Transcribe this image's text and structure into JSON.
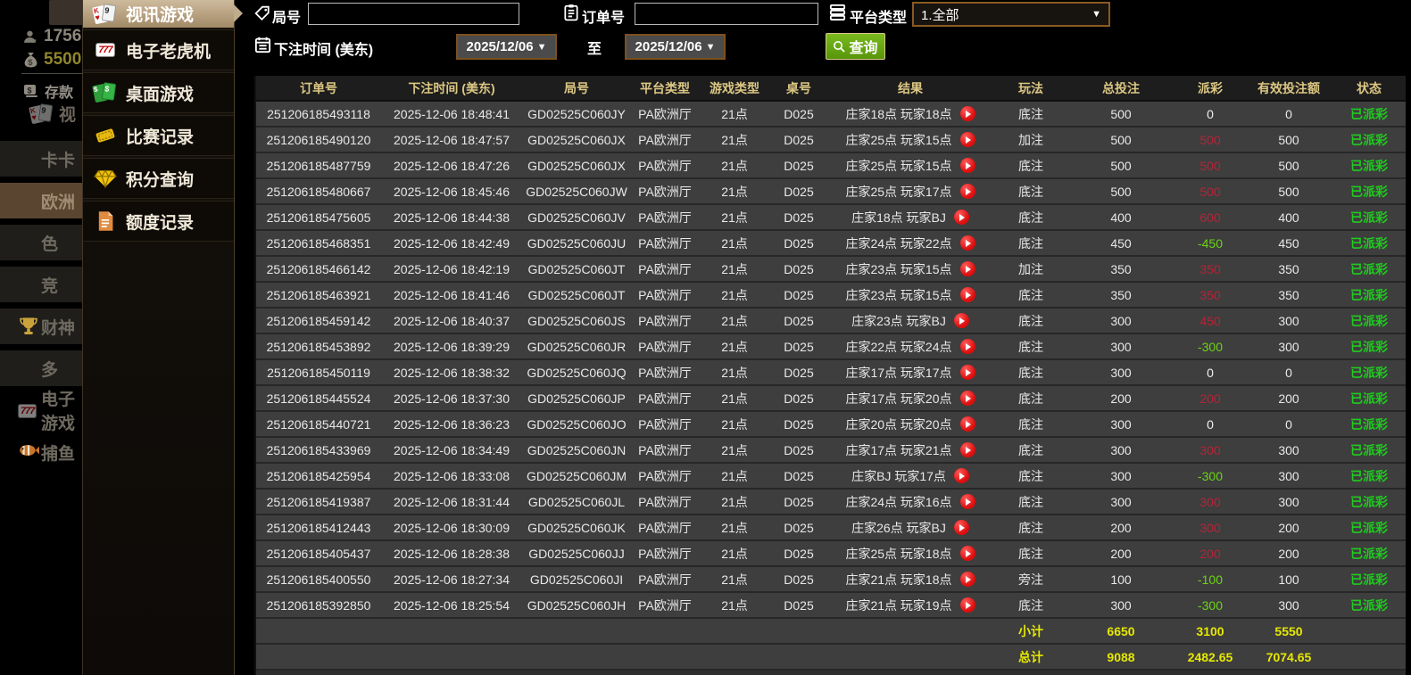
{
  "colors": {
    "accent_tan": "#b49d7c",
    "header_gold": "#dcc783",
    "payout_win_red": "#b52438",
    "payout_lose_green": "#6cd414",
    "status_green": "#1ecb1e",
    "totals_yellow": "#e6e800",
    "search_green": "#579609",
    "date_border_orange": "#7d4f1d"
  },
  "ghost_page": {
    "user_count": "1756",
    "balance": "5500",
    "deposit_label": "存款",
    "video_label": "视",
    "nav_items": [
      {
        "label": "卡卡",
        "icon": "",
        "style": "bg"
      },
      {
        "label": "欧洲",
        "icon": "",
        "style": "active"
      },
      {
        "label": "色",
        "icon": "",
        "style": "bg"
      },
      {
        "label": "竞",
        "icon": "",
        "style": "bg"
      },
      {
        "label": "财神",
        "icon": "trophy",
        "style": "bg"
      },
      {
        "label": "多",
        "icon": "",
        "style": "bg"
      },
      {
        "label": "电子游戏",
        "icon": "slot777",
        "style": ""
      },
      {
        "label": "捕鱼",
        "icon": "fish",
        "style": ""
      }
    ]
  },
  "menu": {
    "items": [
      {
        "label": "视讯游戏",
        "icon": "cards",
        "active": true
      },
      {
        "label": "电子老虎机",
        "icon": "slot777",
        "active": false
      },
      {
        "label": "桌面游戏",
        "icon": "cards-green",
        "active": false
      },
      {
        "label": "比赛记录",
        "icon": "ticket",
        "active": false
      },
      {
        "label": "积分查询",
        "icon": "diamond",
        "active": false
      },
      {
        "label": "额度记录",
        "icon": "document",
        "active": false
      }
    ]
  },
  "filters": {
    "round_label": "局号",
    "round_value": "",
    "order_label": "订单号",
    "order_value": "",
    "platform_label": "平台类型",
    "platform_value": "1.全部",
    "time_label": "下注时间 (美东)",
    "date_from": "2025/12/06",
    "to_label": "至",
    "date_to": "2025/12/06",
    "search_label": "查询",
    "caret": "▼"
  },
  "table": {
    "columns": [
      "订单号",
      "下注时间 (美东)",
      "局号",
      "平台类型",
      "游戏类型",
      "桌号",
      "结果",
      "玩法",
      "总投注",
      "派彩",
      "有效投注额",
      "状态"
    ],
    "rows": [
      {
        "order_id": "251206185493118",
        "bet_time": "2025-12-06 18:48:41",
        "round_id": "GD02525C060JY",
        "platform": "PA欧洲厅",
        "game_type": "21点",
        "table_no": "D025",
        "result": "庄家18点 玩家18点",
        "play_type": "底注",
        "total_bet": "500",
        "payout": "0",
        "valid_bet": "0",
        "status": "已派彩"
      },
      {
        "order_id": "251206185490120",
        "bet_time": "2025-12-06 18:47:57",
        "round_id": "GD02525C060JX",
        "platform": "PA欧洲厅",
        "game_type": "21点",
        "table_no": "D025",
        "result": "庄家25点 玩家15点",
        "play_type": "加注",
        "total_bet": "500",
        "payout": "500",
        "valid_bet": "500",
        "status": "已派彩"
      },
      {
        "order_id": "251206185487759",
        "bet_time": "2025-12-06 18:47:26",
        "round_id": "GD02525C060JX",
        "platform": "PA欧洲厅",
        "game_type": "21点",
        "table_no": "D025",
        "result": "庄家25点 玩家15点",
        "play_type": "底注",
        "total_bet": "500",
        "payout": "500",
        "valid_bet": "500",
        "status": "已派彩"
      },
      {
        "order_id": "251206185480667",
        "bet_time": "2025-12-06 18:45:46",
        "round_id": "GD02525C060JW",
        "platform": "PA欧洲厅",
        "game_type": "21点",
        "table_no": "D025",
        "result": "庄家25点 玩家17点",
        "play_type": "底注",
        "total_bet": "500",
        "payout": "500",
        "valid_bet": "500",
        "status": "已派彩"
      },
      {
        "order_id": "251206185475605",
        "bet_time": "2025-12-06 18:44:38",
        "round_id": "GD02525C060JV",
        "platform": "PA欧洲厅",
        "game_type": "21点",
        "table_no": "D025",
        "result": "庄家18点 玩家BJ",
        "play_type": "底注",
        "total_bet": "400",
        "payout": "600",
        "valid_bet": "400",
        "status": "已派彩"
      },
      {
        "order_id": "251206185468351",
        "bet_time": "2025-12-06 18:42:49",
        "round_id": "GD02525C060JU",
        "platform": "PA欧洲厅",
        "game_type": "21点",
        "table_no": "D025",
        "result": "庄家24点 玩家22点",
        "play_type": "底注",
        "total_bet": "450",
        "payout": "-450",
        "valid_bet": "450",
        "status": "已派彩"
      },
      {
        "order_id": "251206185466142",
        "bet_time": "2025-12-06 18:42:19",
        "round_id": "GD02525C060JT",
        "platform": "PA欧洲厅",
        "game_type": "21点",
        "table_no": "D025",
        "result": "庄家23点 玩家15点",
        "play_type": "加注",
        "total_bet": "350",
        "payout": "350",
        "valid_bet": "350",
        "status": "已派彩"
      },
      {
        "order_id": "251206185463921",
        "bet_time": "2025-12-06 18:41:46",
        "round_id": "GD02525C060JT",
        "platform": "PA欧洲厅",
        "game_type": "21点",
        "table_no": "D025",
        "result": "庄家23点 玩家15点",
        "play_type": "底注",
        "total_bet": "350",
        "payout": "350",
        "valid_bet": "350",
        "status": "已派彩"
      },
      {
        "order_id": "251206185459142",
        "bet_time": "2025-12-06 18:40:37",
        "round_id": "GD02525C060JS",
        "platform": "PA欧洲厅",
        "game_type": "21点",
        "table_no": "D025",
        "result": "庄家23点 玩家BJ",
        "play_type": "底注",
        "total_bet": "300",
        "payout": "450",
        "valid_bet": "300",
        "status": "已派彩"
      },
      {
        "order_id": "251206185453892",
        "bet_time": "2025-12-06 18:39:29",
        "round_id": "GD02525C060JR",
        "platform": "PA欧洲厅",
        "game_type": "21点",
        "table_no": "D025",
        "result": "庄家22点 玩家24点",
        "play_type": "底注",
        "total_bet": "300",
        "payout": "-300",
        "valid_bet": "300",
        "status": "已派彩"
      },
      {
        "order_id": "251206185450119",
        "bet_time": "2025-12-06 18:38:32",
        "round_id": "GD02525C060JQ",
        "platform": "PA欧洲厅",
        "game_type": "21点",
        "table_no": "D025",
        "result": "庄家17点 玩家17点",
        "play_type": "底注",
        "total_bet": "300",
        "payout": "0",
        "valid_bet": "0",
        "status": "已派彩"
      },
      {
        "order_id": "251206185445524",
        "bet_time": "2025-12-06 18:37:30",
        "round_id": "GD02525C060JP",
        "platform": "PA欧洲厅",
        "game_type": "21点",
        "table_no": "D025",
        "result": "庄家17点 玩家20点",
        "play_type": "底注",
        "total_bet": "200",
        "payout": "200",
        "valid_bet": "200",
        "status": "已派彩"
      },
      {
        "order_id": "251206185440721",
        "bet_time": "2025-12-06 18:36:23",
        "round_id": "GD02525C060JO",
        "platform": "PA欧洲厅",
        "game_type": "21点",
        "table_no": "D025",
        "result": "庄家20点 玩家20点",
        "play_type": "底注",
        "total_bet": "300",
        "payout": "0",
        "valid_bet": "0",
        "status": "已派彩"
      },
      {
        "order_id": "251206185433969",
        "bet_time": "2025-12-06 18:34:49",
        "round_id": "GD02525C060JN",
        "platform": "PA欧洲厅",
        "game_type": "21点",
        "table_no": "D025",
        "result": "庄家17点 玩家21点",
        "play_type": "底注",
        "total_bet": "300",
        "payout": "300",
        "valid_bet": "300",
        "status": "已派彩"
      },
      {
        "order_id": "251206185425954",
        "bet_time": "2025-12-06 18:33:08",
        "round_id": "GD02525C060JM",
        "platform": "PA欧洲厅",
        "game_type": "21点",
        "table_no": "D025",
        "result": "庄家BJ 玩家17点",
        "play_type": "底注",
        "total_bet": "300",
        "payout": "-300",
        "valid_bet": "300",
        "status": "已派彩"
      },
      {
        "order_id": "251206185419387",
        "bet_time": "2025-12-06 18:31:44",
        "round_id": "GD02525C060JL",
        "platform": "PA欧洲厅",
        "game_type": "21点",
        "table_no": "D025",
        "result": "庄家24点 玩家16点",
        "play_type": "底注",
        "total_bet": "300",
        "payout": "300",
        "valid_bet": "300",
        "status": "已派彩"
      },
      {
        "order_id": "251206185412443",
        "bet_time": "2025-12-06 18:30:09",
        "round_id": "GD02525C060JK",
        "platform": "PA欧洲厅",
        "game_type": "21点",
        "table_no": "D025",
        "result": "庄家26点 玩家BJ",
        "play_type": "底注",
        "total_bet": "200",
        "payout": "300",
        "valid_bet": "200",
        "status": "已派彩"
      },
      {
        "order_id": "251206185405437",
        "bet_time": "2025-12-06 18:28:38",
        "round_id": "GD02525C060JJ",
        "platform": "PA欧洲厅",
        "game_type": "21点",
        "table_no": "D025",
        "result": "庄家25点 玩家18点",
        "play_type": "底注",
        "total_bet": "200",
        "payout": "200",
        "valid_bet": "200",
        "status": "已派彩"
      },
      {
        "order_id": "251206185400550",
        "bet_time": "2025-12-06 18:27:34",
        "round_id": "GD02525C060JI",
        "platform": "PA欧洲厅",
        "game_type": "21点",
        "table_no": "D025",
        "result": "庄家21点 玩家18点",
        "play_type": "旁注",
        "total_bet": "100",
        "payout": "-100",
        "valid_bet": "100",
        "status": "已派彩"
      },
      {
        "order_id": "251206185392850",
        "bet_time": "2025-12-06 18:25:54",
        "round_id": "GD02525C060JH",
        "platform": "PA欧洲厅",
        "game_type": "21点",
        "table_no": "D025",
        "result": "庄家21点 玩家19点",
        "play_type": "底注",
        "total_bet": "300",
        "payout": "-300",
        "valid_bet": "300",
        "status": "已派彩"
      }
    ],
    "subtotal": {
      "label": "小计",
      "total_bet": "6650",
      "payout": "3100",
      "valid_bet": "5550"
    },
    "grand_total": {
      "label": "总计",
      "total_bet": "9088",
      "payout": "2482.65",
      "valid_bet": "7074.65"
    }
  }
}
